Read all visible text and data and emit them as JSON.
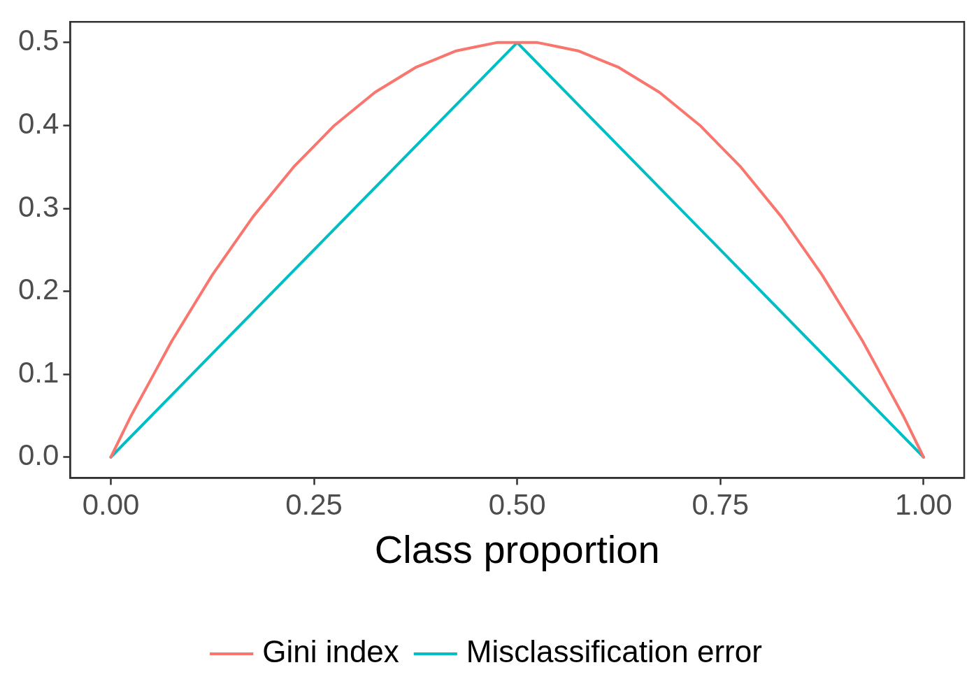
{
  "chart_data": {
    "type": "line",
    "xlabel": "Class proportion",
    "xlim": [
      -0.05,
      1.05
    ],
    "xticks": [
      {
        "value": 0,
        "label": "0.00"
      },
      {
        "value": 0.25,
        "label": "0.25"
      },
      {
        "value": 0.5,
        "label": "0.50"
      },
      {
        "value": 0.75,
        "label": "0.75"
      },
      {
        "value": 1,
        "label": "1.00"
      }
    ],
    "ylim": [
      -0.025,
      0.525
    ],
    "yticks": [
      {
        "value": 0,
        "label": "0.0"
      },
      {
        "value": 0.1,
        "label": "0.1"
      },
      {
        "value": 0.2,
        "label": "0.2"
      },
      {
        "value": 0.3,
        "label": "0.3"
      },
      {
        "value": 0.4,
        "label": "0.4"
      },
      {
        "value": 0.5,
        "label": "0.5"
      }
    ],
    "grid": false,
    "legend": "bottom",
    "marker": "none",
    "line_style": "solid",
    "series": [
      {
        "name": "Gini index",
        "color": "#f8766d",
        "x": [
          0,
          0.025,
          0.05,
          0.075,
          0.1,
          0.125,
          0.15,
          0.175,
          0.2,
          0.225,
          0.25,
          0.275,
          0.3,
          0.325,
          0.35,
          0.375,
          0.4,
          0.425,
          0.45,
          0.475,
          0.5,
          0.525,
          0.55,
          0.575,
          0.6,
          0.625,
          0.65,
          0.675,
          0.7,
          0.725,
          0.75,
          0.775,
          0.8,
          0.825,
          0.85,
          0.875,
          0.9,
          0.925,
          0.95,
          0.975,
          1
        ],
        "values": [
          0,
          0.05,
          0.095,
          0.14,
          0.18,
          0.22,
          0.255,
          0.29,
          0.32,
          0.35,
          0.375,
          0.4,
          0.42,
          0.44,
          0.455,
          0.47,
          0.48,
          0.49,
          0.495,
          0.5,
          0.5,
          0.5,
          0.495,
          0.49,
          0.48,
          0.47,
          0.455,
          0.44,
          0.42,
          0.4,
          0.375,
          0.35,
          0.32,
          0.29,
          0.255,
          0.22,
          0.18,
          0.14,
          0.095,
          0.05,
          0
        ]
      },
      {
        "name": "Misclassification error",
        "color": "#00bfc4",
        "x": [
          0,
          0.5,
          1
        ],
        "values": [
          0,
          0.5,
          0
        ]
      }
    ]
  }
}
